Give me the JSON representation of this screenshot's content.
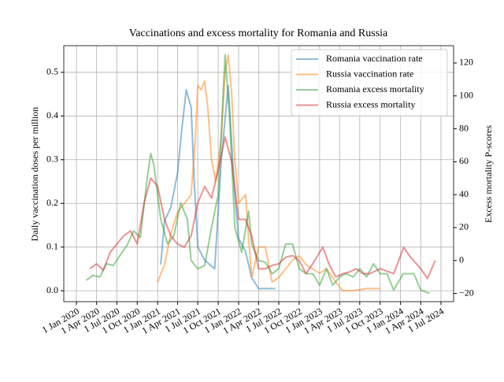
{
  "chart_data": {
    "type": "line",
    "title": "Vaccinations and excess mortality for Romania and Russia",
    "ylabel": "Daily vaccination doses per million",
    "y2label": "Excess mortality P-scores",
    "xlim": [
      "2019-11-05",
      "2024-08-27"
    ],
    "ylim": [
      -0.025,
      0.561
    ],
    "y2lim": [
      -25,
      130.5
    ],
    "xticks": [
      {
        "value": "2020-01-01",
        "label": "1 Jan 2020"
      },
      {
        "value": "2020-04-01",
        "label": "1 Apr 2020"
      },
      {
        "value": "2020-07-01",
        "label": "1 Jul 2020"
      },
      {
        "value": "2020-10-01",
        "label": "1 Oct 2020"
      },
      {
        "value": "2021-01-01",
        "label": "1 Jan 2021"
      },
      {
        "value": "2021-04-01",
        "label": "1 Apr 2021"
      },
      {
        "value": "2021-07-01",
        "label": "1 Jul 2021"
      },
      {
        "value": "2021-10-01",
        "label": "1 Oct 2021"
      },
      {
        "value": "2022-01-01",
        "label": "1 Jan 2022"
      },
      {
        "value": "2022-04-01",
        "label": "1 Apr 2022"
      },
      {
        "value": "2022-07-01",
        "label": "1 Jul 2022"
      },
      {
        "value": "2022-10-01",
        "label": "1 Oct 2022"
      },
      {
        "value": "2023-01-01",
        "label": "1 Jan 2023"
      },
      {
        "value": "2023-04-01",
        "label": "1 Apr 2023"
      },
      {
        "value": "2023-07-01",
        "label": "1 Jul 2023"
      },
      {
        "value": "2023-10-01",
        "label": "1 Oct 2023"
      },
      {
        "value": "2024-01-01",
        "label": "1 Jan 2024"
      },
      {
        "value": "2024-04-01",
        "label": "1 Apr 2024"
      },
      {
        "value": "2024-07-01",
        "label": "1 Jul 2024"
      }
    ],
    "yticks": [
      {
        "value": 0,
        "label": "0.0"
      },
      0.1,
      0.2,
      0.3,
      0.4,
      0.5
    ],
    "y2ticks": [
      {
        "value": -20,
        "label": "−20"
      },
      0,
      20,
      40,
      60,
      80,
      100,
      120
    ],
    "grid": true,
    "legend": "upper right",
    "line_alpha": 0.5,
    "series": [
      {
        "name": "Romania vaccination rate",
        "color": "#1f77b4",
        "axis": "y",
        "x": [
          "2021-01-15",
          "2021-02-01",
          "2021-03-01",
          "2021-04-01",
          "2021-04-20",
          "2021-05-10",
          "2021-06-01",
          "2021-06-15",
          "2021-07-01",
          "2021-08-01",
          "2021-09-15",
          "2021-10-15",
          "2021-11-15",
          "2021-12-15",
          "2022-01-01",
          "2022-02-01",
          "2022-03-01",
          "2022-04-01",
          "2022-06-15"
        ],
        "values": [
          0.06,
          0.16,
          0.19,
          0.27,
          0.37,
          0.46,
          0.42,
          0.25,
          0.1,
          0.07,
          0.05,
          0.3,
          0.47,
          0.22,
          0.12,
          0.09,
          0.03,
          0.005,
          0.005
        ]
      },
      {
        "name": "Russia vaccination rate",
        "color": "#ff7f0e",
        "axis": "y",
        "x": [
          "2021-01-01",
          "2021-02-01",
          "2021-03-01",
          "2021-04-01",
          "2021-05-01",
          "2021-06-01",
          "2021-06-20",
          "2021-07-01",
          "2021-07-15",
          "2021-08-01",
          "2021-08-15",
          "2021-09-01",
          "2021-09-20",
          "2021-10-15",
          "2021-11-01",
          "2021-11-15",
          "2021-12-01",
          "2021-12-15",
          "2022-01-01",
          "2022-02-01",
          "2022-02-15",
          "2022-03-01",
          "2022-04-01",
          "2022-05-01",
          "2022-06-01",
          "2022-07-01",
          "2022-09-01",
          "2022-10-01",
          "2022-11-01",
          "2022-12-01",
          "2023-01-01",
          "2023-02-01",
          "2023-03-15",
          "2023-04-15",
          "2023-06-01",
          "2023-08-01",
          "2023-10-01"
        ],
        "values": [
          0.02,
          0.06,
          0.13,
          0.18,
          0.2,
          0.22,
          0.35,
          0.47,
          0.46,
          0.48,
          0.42,
          0.3,
          0.25,
          0.35,
          0.5,
          0.54,
          0.45,
          0.3,
          0.2,
          0.22,
          0.12,
          0.03,
          0.1,
          0.1,
          0.02,
          0.03,
          0.07,
          0.08,
          0.06,
          0.05,
          0.04,
          0.05,
          0.02,
          0.0,
          0.0,
          0.005,
          0.005
        ]
      },
      {
        "name": "Romania excess mortality",
        "color": "#2ca02c",
        "axis": "y2",
        "x": [
          "2020-02-15",
          "2020-03-15",
          "2020-04-15",
          "2020-05-15",
          "2020-06-15",
          "2020-07-15",
          "2020-08-15",
          "2020-09-15",
          "2020-10-15",
          "2020-11-15",
          "2020-12-01",
          "2020-12-15",
          "2021-01-15",
          "2021-02-15",
          "2021-03-15",
          "2021-04-15",
          "2021-05-15",
          "2021-06-01",
          "2021-07-01",
          "2021-08-01",
          "2021-09-01",
          "2021-10-01",
          "2021-11-01",
          "2021-11-20",
          "2021-12-15",
          "2022-01-15",
          "2022-02-15",
          "2022-03-01",
          "2022-04-01",
          "2022-05-01",
          "2022-06-01",
          "2022-07-01",
          "2022-08-01",
          "2022-09-01",
          "2022-10-01",
          "2022-11-01",
          "2022-12-01",
          "2023-01-01",
          "2023-02-01",
          "2023-03-01",
          "2023-04-01",
          "2023-05-01",
          "2023-06-01",
          "2023-07-01",
          "2023-08-01",
          "2023-09-01",
          "2023-10-01",
          "2023-11-01",
          "2023-12-01",
          "2024-01-13",
          "2024-03-01",
          "2024-04-01",
          "2024-05-10"
        ],
        "values": [
          -12,
          -9,
          -10,
          -2,
          -3,
          3,
          9,
          18,
          14,
          50,
          65,
          58,
          25,
          10,
          15,
          35,
          25,
          0,
          -5,
          -3,
          20,
          40,
          125,
          90,
          20,
          5,
          30,
          10,
          0,
          -1,
          -8,
          -5,
          10,
          10,
          -5,
          -8,
          -8,
          -15,
          -5,
          -15,
          -10,
          -8,
          -10,
          -5,
          -10,
          -2,
          -8,
          -8,
          -18,
          -8,
          -8,
          -18,
          -20
        ]
      },
      {
        "name": "Russia excess mortality",
        "color": "#d62728",
        "axis": "y2",
        "x": [
          "2020-03-01",
          "2020-04-01",
          "2020-05-01",
          "2020-06-01",
          "2020-07-01",
          "2020-08-01",
          "2020-09-01",
          "2020-10-01",
          "2020-11-01",
          "2020-12-01",
          "2021-01-01",
          "2021-02-01",
          "2021-03-01",
          "2021-04-01",
          "2021-05-01",
          "2021-06-01",
          "2021-07-01",
          "2021-08-01",
          "2021-09-01",
          "2021-10-01",
          "2021-11-01",
          "2021-12-01",
          "2022-01-01",
          "2022-02-01",
          "2022-03-01",
          "2022-04-01",
          "2022-05-01",
          "2022-06-01",
          "2022-07-01",
          "2022-08-01",
          "2022-09-01",
          "2022-10-01",
          "2022-11-01",
          "2022-12-01",
          "2023-01-15",
          "2023-02-15",
          "2023-03-15",
          "2023-04-15",
          "2023-05-15",
          "2023-06-15",
          "2023-07-15",
          "2023-08-15",
          "2023-10-01",
          "2023-12-01",
          "2024-01-15",
          "2024-02-15",
          "2024-04-01",
          "2024-05-01",
          "2024-06-05"
        ],
        "values": [
          -5,
          -2,
          -6,
          5,
          10,
          15,
          18,
          10,
          35,
          50,
          45,
          25,
          15,
          10,
          8,
          15,
          35,
          45,
          38,
          55,
          75,
          60,
          25,
          25,
          15,
          -5,
          -5,
          -3,
          -2,
          2,
          3,
          0,
          -8,
          -2,
          8,
          -3,
          -10,
          -8,
          -7,
          -5,
          -8,
          -8,
          -5,
          -8,
          8,
          2,
          -5,
          -11,
          0
        ]
      }
    ]
  }
}
